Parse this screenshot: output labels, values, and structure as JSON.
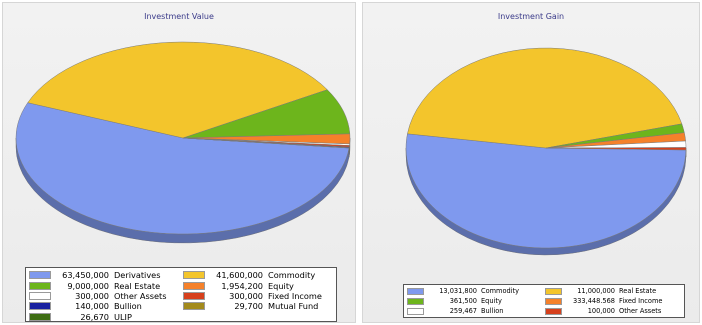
{
  "chart_data": [
    {
      "type": "pie",
      "title": "Investment Value",
      "slices": [
        {
          "label": "Derivatives",
          "value": 63450000,
          "display": "63,450,000",
          "color": "#7f99ee"
        },
        {
          "label": "Commodity",
          "value": 41600000,
          "display": "41,600,000",
          "color": "#f3c52c"
        },
        {
          "label": "Real Estate",
          "value": 9000000,
          "display": "9,000,000",
          "color": "#6db51c"
        },
        {
          "label": "Equity",
          "value": 1954200,
          "display": "1,954,200",
          "color": "#f5812a"
        },
        {
          "label": "Other Assets",
          "value": 300000,
          "display": "300,000",
          "color": "#ffffff"
        },
        {
          "label": "Fixed Income",
          "value": 300000,
          "display": "300,000",
          "color": "#d6401c"
        },
        {
          "label": "Bullion",
          "value": 140000,
          "display": "140,000",
          "color": "#1a22a0"
        },
        {
          "label": "Mutual Fund",
          "value": 29700,
          "display": "29,700",
          "color": "#a38a1c"
        },
        {
          "label": "ULIP",
          "value": 26670,
          "display": "26,670",
          "color": "#3f6e14"
        }
      ],
      "legend_position": "bottom",
      "legend_columns": 2,
      "style": "3d"
    },
    {
      "type": "pie",
      "title": "Investment Gain",
      "slices": [
        {
          "label": "Commodity",
          "value": 13031800,
          "display": "13,031,800",
          "color": "#7f99ee"
        },
        {
          "label": "Real Estate",
          "value": 11000000,
          "display": "11,000,000",
          "color": "#f3c52c"
        },
        {
          "label": "Equity",
          "value": 361500,
          "display": "361,500",
          "color": "#6db51c"
        },
        {
          "label": "Fixed Income",
          "value": 333448.568,
          "display": "333,448.568",
          "color": "#f5812a"
        },
        {
          "label": "Bullion",
          "value": 259467,
          "display": "259,467",
          "color": "#ffffff"
        },
        {
          "label": "Other Assets",
          "value": 100000,
          "display": "100,000",
          "color": "#d6401c"
        }
      ],
      "legend_position": "bottom",
      "legend_columns": 2,
      "style": "3d"
    }
  ]
}
